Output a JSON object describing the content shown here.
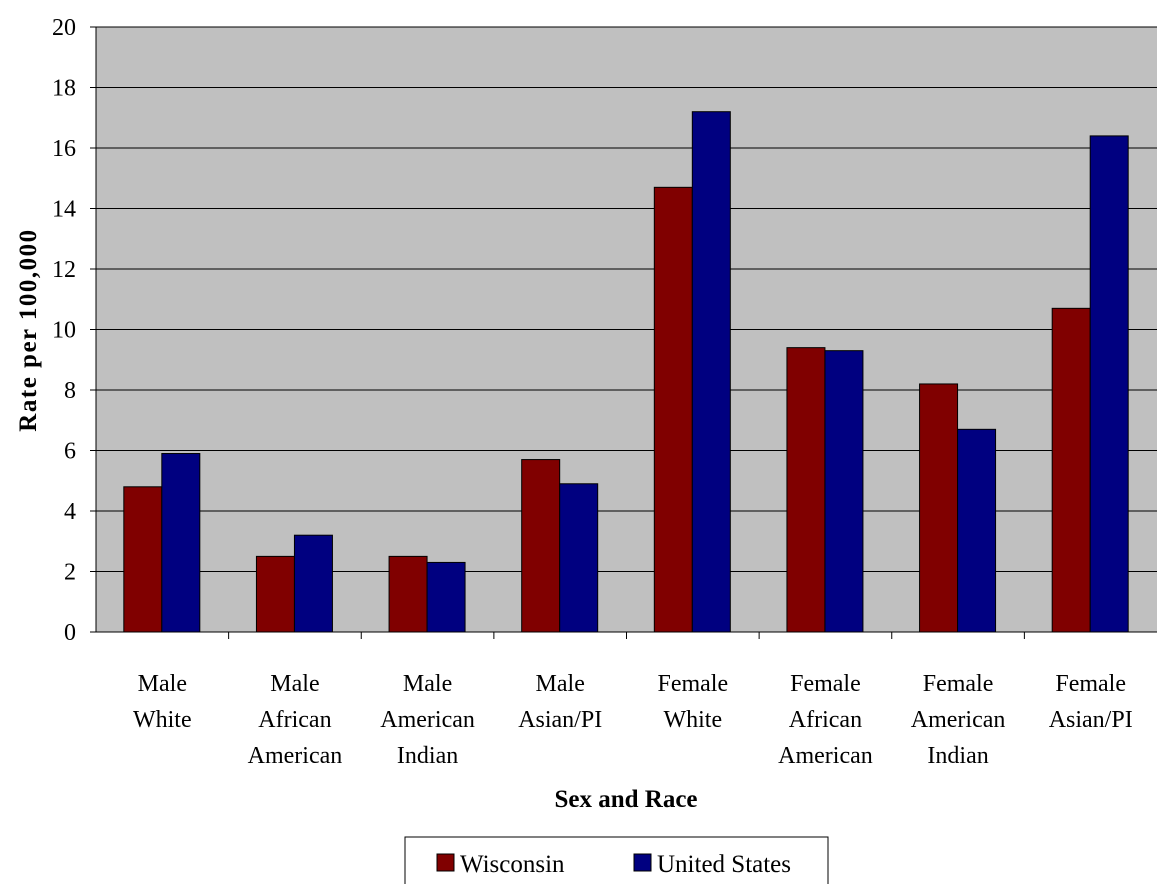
{
  "chart_data": {
    "type": "bar",
    "title": "",
    "xlabel": "Sex and Race",
    "ylabel": "Rate per 100,000",
    "ylim": [
      0,
      20
    ],
    "yticks": [
      0,
      2,
      4,
      6,
      8,
      10,
      12,
      14,
      16,
      18,
      20
    ],
    "categories": [
      [
        "Male",
        "White"
      ],
      [
        "Male",
        "African",
        "American"
      ],
      [
        "Male",
        "American",
        "Indian"
      ],
      [
        "Male",
        "Asian/PI"
      ],
      [
        "Female",
        "White"
      ],
      [
        "Female",
        "African",
        "American"
      ],
      [
        "Female",
        "American",
        "Indian"
      ],
      [
        "Female",
        "Asian/PI"
      ]
    ],
    "series": [
      {
        "name": "Wisconsin",
        "color": "#800000",
        "values": [
          4.8,
          2.5,
          2.5,
          5.7,
          14.7,
          9.4,
          8.2,
          10.7
        ]
      },
      {
        "name": "United States",
        "color": "#000080",
        "values": [
          5.9,
          3.2,
          2.3,
          4.9,
          17.2,
          9.3,
          6.7,
          16.4
        ]
      }
    ],
    "grid": true,
    "plot_background": "#c0c0c0",
    "legend": "bottom"
  }
}
